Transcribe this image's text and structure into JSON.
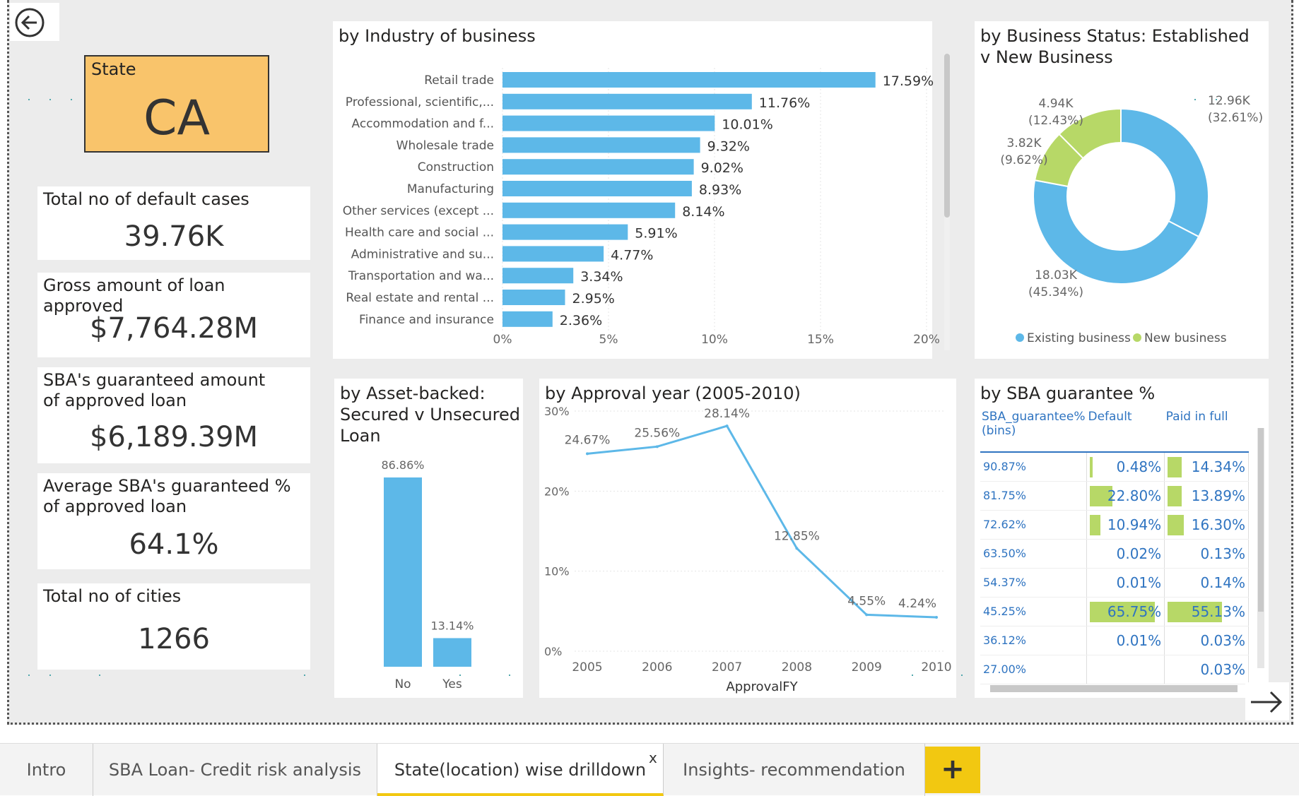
{
  "state_slicer": {
    "label": "State",
    "value": "CA"
  },
  "kpis": [
    {
      "label": "Total no of default cases",
      "value": "39.76K"
    },
    {
      "label": "Gross amount of loan approved",
      "value": "$7,764.28M"
    },
    {
      "label": "SBA's guaranteed amount of approved loan",
      "value": "$6,189.39M"
    },
    {
      "label": "Average SBA's guaranteed % of approved loan",
      "value": "64.1%"
    },
    {
      "label": "Total no of cities",
      "value": "1266"
    }
  ],
  "tabs": [
    {
      "label": "Intro"
    },
    {
      "label": "SBA Loan- Credit risk analysis"
    },
    {
      "label": "State(location) wise drilldown"
    },
    {
      "label": "Insights- recommendation"
    }
  ],
  "tab_close": "x",
  "tab_add": "+",
  "colors": {
    "bar": "#5db8e8",
    "accent_green": "#b7d867",
    "tab_add": "#f2c811",
    "slicer": "#f9c46b"
  },
  "chart_data": [
    {
      "type": "bar",
      "orientation": "horizontal",
      "title": "by Industry of business",
      "categories": [
        "Retail trade",
        "Professional, scientific,...",
        "Accommodation and f...",
        "Wholesale trade",
        "Construction",
        "Manufacturing",
        "Other services (except ...",
        "Health care and social ...",
        "Administrative and su...",
        "Transportation and wa...",
        "Real estate and rental ...",
        "Finance and insurance"
      ],
      "values": [
        17.59,
        11.76,
        10.01,
        9.32,
        9.02,
        8.93,
        8.14,
        5.91,
        4.77,
        3.34,
        2.95,
        2.36
      ],
      "data_labels": [
        "17.59%",
        "11.76%",
        "10.01%",
        "9.32%",
        "9.02%",
        "8.93%",
        "8.14%",
        "5.91%",
        "4.77%",
        "3.34%",
        "2.95%",
        "2.36%"
      ],
      "xlim": [
        0,
        20
      ],
      "x_ticks": [
        "0%",
        "5%",
        "10%",
        "15%",
        "20%"
      ]
    },
    {
      "type": "pie",
      "donut": true,
      "title": "by Business Status: Established v New Business",
      "slices": [
        {
          "value": 12.96,
          "share": 32.61,
          "label": "12.96K",
          "pct": "(32.61%)"
        },
        {
          "value": 18.03,
          "share": 45.34,
          "label": "18.03K",
          "pct": "(45.34%)"
        },
        {
          "value": 3.82,
          "share": 9.62,
          "label": "3.82K",
          "pct": "(9.62%)"
        },
        {
          "value": 4.94,
          "share": 12.43,
          "label": "4.94K",
          "pct": "(12.43%)"
        }
      ],
      "legend": [
        "Existing business",
        "New business"
      ],
      "legend_position": "bottom"
    },
    {
      "type": "bar",
      "title": "by Asset-backed: Secured v Unsecured Loan",
      "categories": [
        "No",
        "Yes"
      ],
      "values": [
        86.86,
        13.14
      ],
      "data_labels": [
        "86.86%",
        "13.14%"
      ],
      "ylim": [
        0,
        100
      ]
    },
    {
      "type": "line",
      "title": "by Approval year (2005-2010)",
      "x": [
        "2005",
        "2006",
        "2007",
        "2008",
        "2009",
        "2010"
      ],
      "values": [
        24.67,
        25.56,
        28.14,
        12.85,
        4.55,
        4.24
      ],
      "data_labels": [
        "24.67%",
        "25.56%",
        "28.14%",
        "12.85%",
        "4.55%",
        "4.24%"
      ],
      "xlabel": "ApprovalFY",
      "ylim": [
        0,
        30
      ],
      "y_ticks": [
        "0%",
        "10%",
        "20%",
        "30%"
      ]
    },
    {
      "type": "table",
      "title": "by SBA guarantee %",
      "columns": [
        "SBA_guarantee% (bins)",
        "Default",
        "Paid in full"
      ],
      "rows": [
        [
          "90.87%",
          "0.48%",
          "14.34%"
        ],
        [
          "81.75%",
          "22.80%",
          "13.89%"
        ],
        [
          "72.62%",
          "10.94%",
          "16.30%"
        ],
        [
          "63.50%",
          "0.02%",
          "0.13%"
        ],
        [
          "54.37%",
          "0.01%",
          "0.14%"
        ],
        [
          "45.25%",
          "65.75%",
          "55.13%"
        ],
        [
          "36.12%",
          "0.01%",
          "0.03%"
        ],
        [
          "27.00%",
          "",
          "0.03%"
        ]
      ],
      "default_values": [
        0.48,
        22.8,
        10.94,
        0.02,
        0.01,
        65.75,
        0.01,
        0
      ],
      "paid_values": [
        14.34,
        13.89,
        16.3,
        0.13,
        0.14,
        55.13,
        0.03,
        0.03
      ]
    }
  ]
}
